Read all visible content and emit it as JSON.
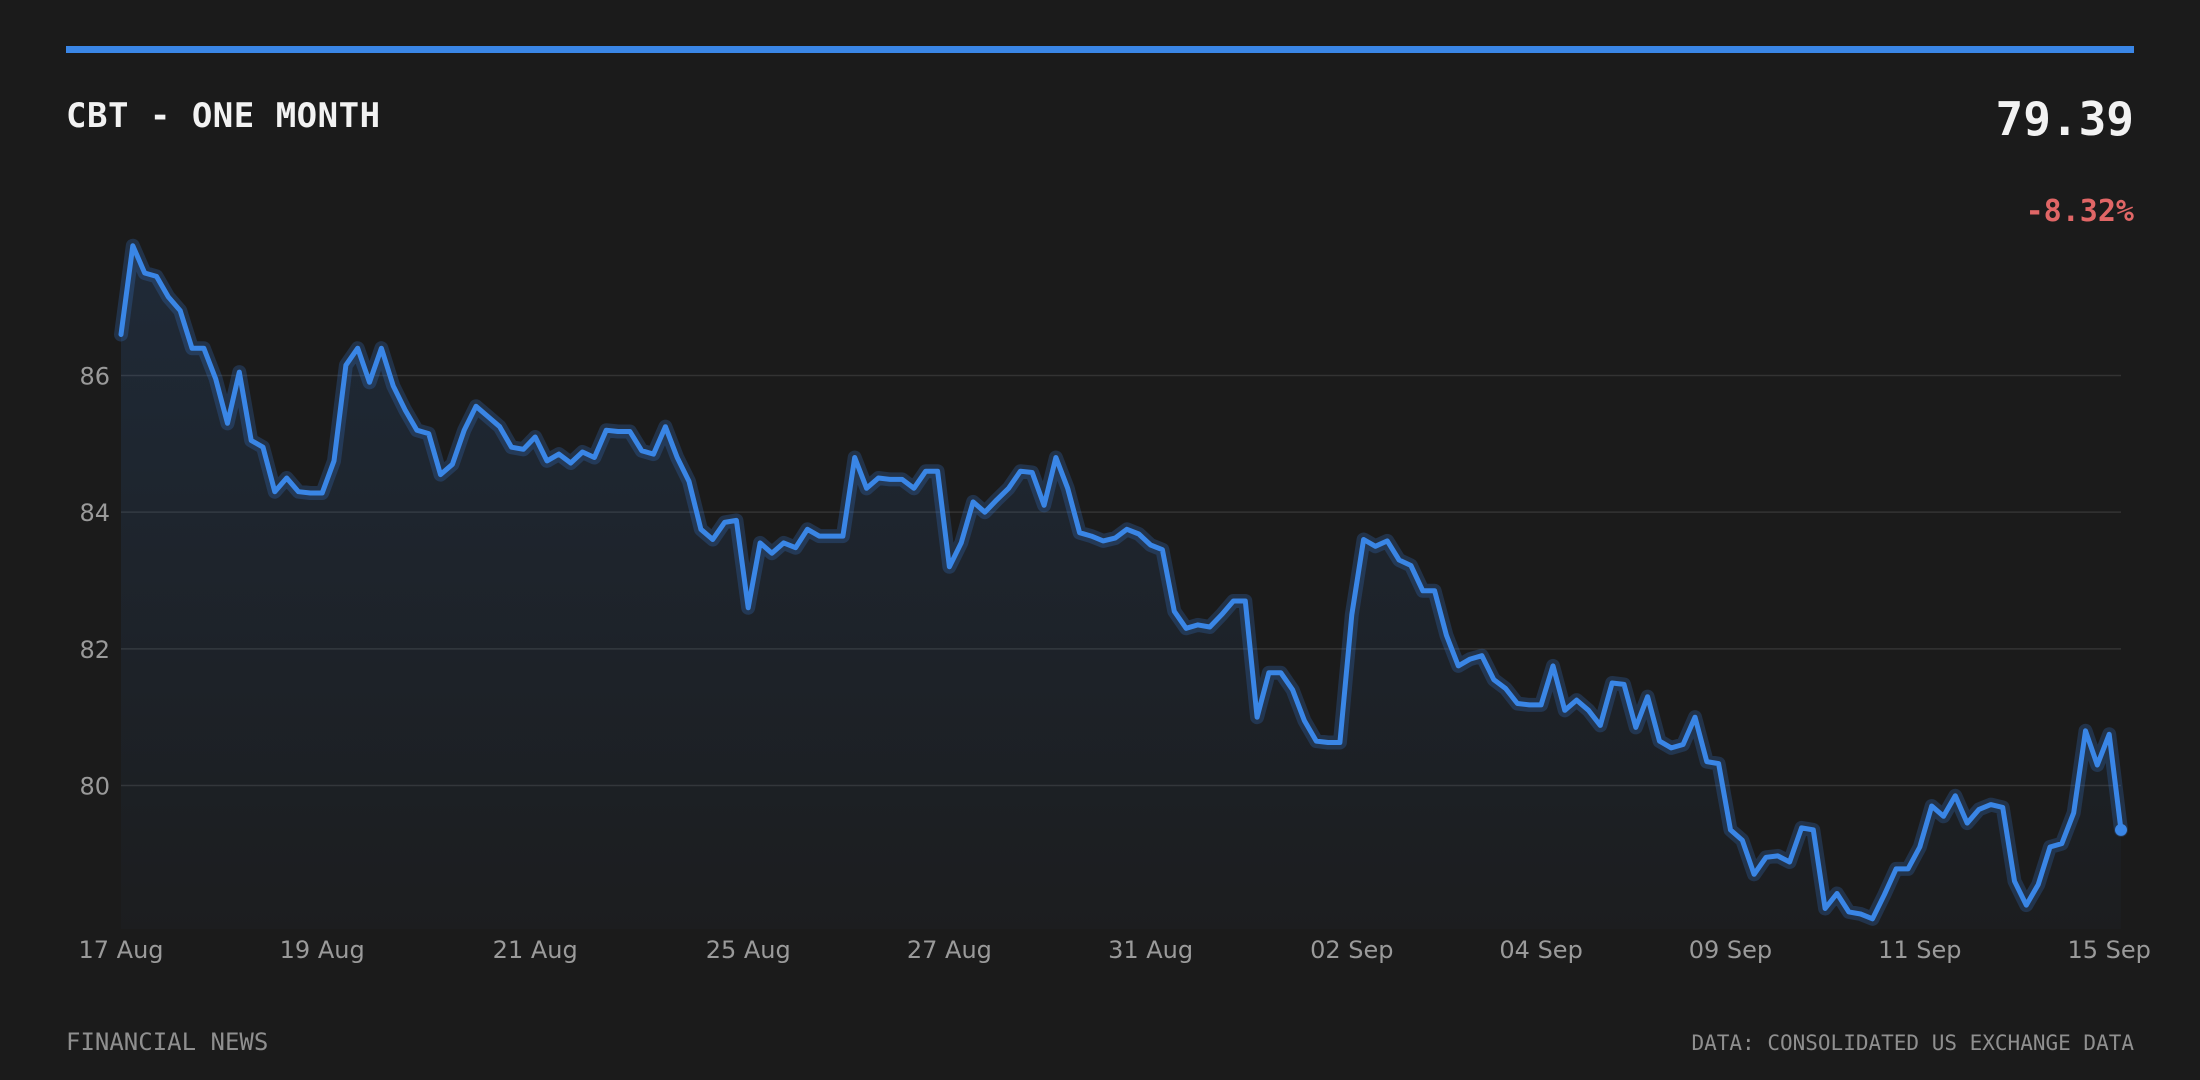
{
  "header": {
    "title": "CBT - ONE MONTH",
    "price": "79.39",
    "change": "-8.32%"
  },
  "footer": {
    "source_left": "FINANCIAL NEWS",
    "source_right": "DATA: CONSOLIDATED US EXCHANGE DATA"
  },
  "colors": {
    "accent": "#3a86e6",
    "negative": "#e06666",
    "background": "#1b1b1b",
    "grid": "#333333",
    "tick_text": "#9a9a9a"
  },
  "chart_data": {
    "type": "line",
    "title": "CBT - ONE MONTH",
    "xlabel": "",
    "ylabel": "",
    "ylim": [
      77.9,
      88.1
    ],
    "yticks": [
      80,
      82,
      84,
      86
    ],
    "grid": true,
    "legend": "none",
    "xtick_labels": [
      "17 Aug",
      "19 Aug",
      "21 Aug",
      "25 Aug",
      "27 Aug",
      "31 Aug",
      "02 Sep",
      "04 Sep",
      "09 Sep",
      "11 Sep",
      "15 Sep"
    ],
    "xtick_indices": [
      0,
      17,
      35,
      53,
      70,
      87,
      104,
      120,
      136,
      152,
      168
    ],
    "series": [
      {
        "values": [
          86.6,
          87.9,
          87.5,
          87.45,
          87.15,
          86.95,
          86.4,
          86.4,
          85.95,
          85.3,
          86.05,
          85.05,
          84.95,
          84.3,
          84.5,
          84.3,
          84.28,
          84.28,
          84.75,
          86.15,
          86.4,
          85.9,
          86.4,
          85.85,
          85.5,
          85.2,
          85.15,
          84.55,
          84.7,
          85.2,
          85.55,
          85.4,
          85.25,
          84.95,
          84.92,
          85.1,
          84.75,
          84.85,
          84.72,
          84.88,
          84.8,
          85.2,
          85.18,
          85.18,
          84.9,
          84.85,
          85.25,
          84.8,
          84.45,
          83.75,
          83.6,
          83.85,
          83.88,
          82.6,
          83.55,
          83.4,
          83.55,
          83.48,
          83.75,
          83.65,
          83.65,
          83.65,
          84.8,
          84.35,
          84.5,
          84.48,
          84.48,
          84.35,
          84.6,
          84.6,
          83.2,
          83.55,
          84.15,
          84.0,
          84.18,
          84.35,
          84.6,
          84.58,
          84.1,
          84.8,
          84.35,
          83.7,
          83.65,
          83.58,
          83.62,
          83.75,
          83.68,
          83.52,
          83.45,
          82.55,
          82.3,
          82.35,
          82.32,
          82.5,
          82.7,
          82.7,
          81.0,
          81.65,
          81.65,
          81.4,
          80.95,
          80.65,
          80.63,
          80.63,
          82.5,
          83.6,
          83.5,
          83.58,
          83.3,
          83.22,
          82.85,
          82.85,
          82.2,
          81.75,
          81.85,
          81.9,
          81.55,
          81.42,
          81.2,
          81.18,
          81.18,
          81.75,
          81.1,
          81.25,
          81.1,
          80.88,
          81.5,
          81.48,
          80.85,
          81.3,
          80.65,
          80.55,
          80.6,
          81.0,
          80.35,
          80.32,
          79.35,
          79.2,
          78.7,
          78.95,
          78.97,
          78.88,
          79.38,
          79.35,
          78.2,
          78.42,
          78.15,
          78.12,
          78.05,
          78.4,
          78.78,
          78.78,
          79.1,
          79.7,
          79.55,
          79.85,
          79.45,
          79.65,
          79.72,
          79.68,
          78.6,
          78.25,
          78.55,
          79.1,
          79.15,
          79.6,
          80.8,
          80.3,
          80.75,
          79.35
        ]
      }
    ]
  }
}
